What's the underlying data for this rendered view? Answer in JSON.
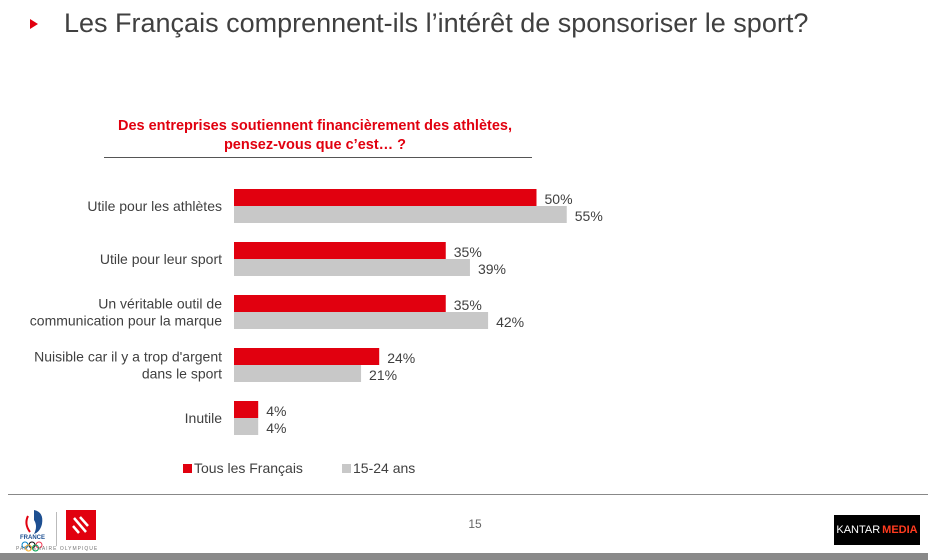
{
  "page": {
    "title": "Les Français comprennent-ils l’intérêt de sponsoriser le sport?",
    "page_number": "15",
    "partner_text": "PARTENAIRE OLYMPIQUE",
    "kantar_label": "KANTAR",
    "kantar_media": "MEDIA"
  },
  "colors": {
    "accent": "#e1000f",
    "secondary": "#c8c8c8"
  },
  "chart_data": {
    "type": "bar",
    "orientation": "horizontal",
    "title": "Des entreprises soutiennent financièrement des athlètes, pensez-vous que c’est… ?",
    "categories": [
      "Utile pour les athlètes",
      "Utile pour leur sport",
      "Un véritable outil de communication pour la marque",
      "Nuisible car il y a trop d'argent dans le sport",
      "Inutile"
    ],
    "category_lines": [
      [
        "Utile pour les athlètes"
      ],
      [
        "Utile pour leur sport"
      ],
      [
        "Un véritable outil de",
        "communication pour la marque"
      ],
      [
        "Nuisible car il y a trop d'argent",
        "dans le sport"
      ],
      [
        "Inutile"
      ]
    ],
    "series": [
      {
        "name": "Tous les Français",
        "values": [
          50,
          35,
          35,
          24,
          4
        ],
        "labels": [
          "50%",
          "35%",
          "35%",
          "24%",
          "4%"
        ],
        "color": "#e1000f"
      },
      {
        "name": "15-24 ans",
        "values": [
          55,
          39,
          42,
          21,
          4
        ],
        "labels": [
          "55%",
          "39%",
          "42%",
          "21%",
          "4%"
        ],
        "color": "#c8c8c8"
      }
    ],
    "xlim": [
      0,
      100
    ],
    "grid": false,
    "legend_position": "bottom"
  }
}
